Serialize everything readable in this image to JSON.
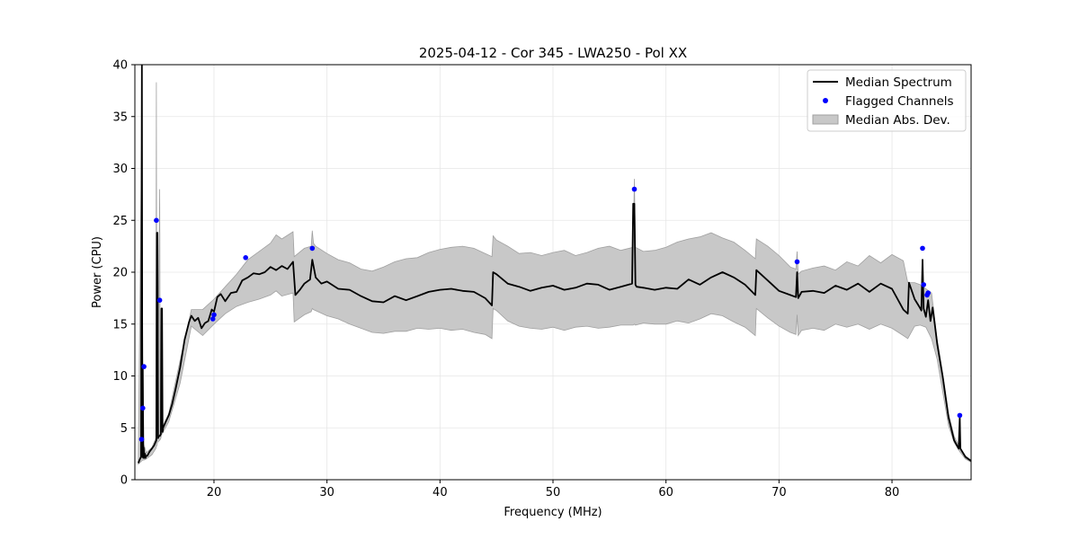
{
  "chart_data": {
    "type": "line",
    "title": "2025-04-12 - Cor 345 - LWA250 - Pol XX",
    "xlabel": "Frequency (MHz)",
    "ylabel": "Power (CPU)",
    "xlim": [
      13.0,
      87.0
    ],
    "ylim": [
      0,
      40
    ],
    "xticks": [
      20,
      30,
      40,
      50,
      60,
      70,
      80
    ],
    "yticks": [
      0,
      5,
      10,
      15,
      20,
      25,
      30,
      35,
      40
    ],
    "grid": true,
    "legend_position": "top-right",
    "colors": {
      "median": "#000000",
      "flagged": "#0000ff",
      "mad_fill": "#c8c8c8",
      "mad_edge": "#a0a0a0",
      "grid": "#e6e6e6"
    },
    "series": [
      {
        "name": "Median Spectrum",
        "kind": "line",
        "x": [
          13.3,
          13.45,
          13.55,
          13.62,
          13.66,
          13.7,
          13.74,
          13.78,
          13.84,
          13.9,
          13.95,
          14.0,
          14.05,
          14.1,
          14.3,
          14.5,
          14.7,
          14.9,
          14.95,
          15.0,
          15.05,
          15.1,
          15.2,
          15.3,
          15.35,
          15.4,
          15.45,
          15.5,
          15.7,
          16.0,
          16.3,
          16.6,
          17.0,
          17.4,
          17.8,
          18.0,
          18.3,
          18.6,
          18.9,
          19.2,
          19.5,
          19.8,
          20.0,
          20.3,
          20.6,
          21.0,
          21.5,
          22.0,
          22.5,
          23.0,
          23.5,
          24.0,
          24.5,
          25.0,
          25.5,
          26.0,
          26.5,
          27.0,
          27.2,
          27.6,
          28.0,
          28.5,
          28.7,
          29.0,
          29.5,
          30.0,
          31.0,
          32.0,
          33.0,
          34.0,
          35.0,
          36.0,
          37.0,
          38.0,
          39.0,
          40.0,
          41.0,
          42.0,
          43.0,
          44.0,
          44.6,
          44.7,
          45.0,
          46.0,
          47.0,
          48.0,
          49.0,
          50.0,
          51.0,
          52.0,
          53.0,
          54.0,
          55.0,
          56.0,
          57.0,
          57.1,
          57.2,
          57.3,
          57.4,
          58.0,
          59.0,
          60.0,
          61.0,
          62.0,
          63.0,
          64.0,
          65.0,
          66.0,
          67.0,
          67.9,
          68.0,
          69.0,
          70.0,
          71.0,
          71.5,
          71.6,
          71.7,
          72.0,
          73.0,
          74.0,
          75.0,
          76.0,
          77.0,
          78.0,
          79.0,
          80.0,
          81.0,
          81.4,
          81.5,
          82.0,
          82.4,
          82.6,
          82.7,
          82.8,
          83.0,
          83.2,
          83.4,
          83.6,
          84.0,
          84.5,
          85.0,
          85.5,
          85.9,
          86.0,
          86.05,
          86.5,
          87.0
        ],
        "y": [
          1.6,
          2.0,
          2.2,
          40.0,
          2.2,
          10.8,
          2.1,
          3.1,
          2.1,
          2.5,
          2.1,
          2.3,
          2.3,
          2.3,
          2.7,
          3.0,
          3.3,
          3.8,
          23.8,
          23.8,
          4.0,
          4.2,
          4.2,
          4.4,
          16.5,
          16.5,
          4.6,
          5.0,
          5.5,
          6.2,
          7.3,
          8.7,
          10.8,
          13.5,
          15.2,
          15.8,
          15.3,
          15.6,
          14.6,
          15.1,
          15.3,
          16.4,
          16.2,
          17.6,
          17.9,
          17.2,
          18.0,
          18.1,
          19.2,
          19.5,
          19.9,
          19.8,
          20.0,
          20.5,
          20.2,
          20.6,
          20.3,
          21.0,
          17.8,
          18.3,
          18.9,
          19.3,
          21.2,
          19.5,
          18.9,
          19.1,
          18.4,
          18.3,
          17.7,
          17.2,
          17.1,
          17.7,
          17.3,
          17.7,
          18.1,
          18.3,
          18.4,
          18.2,
          18.1,
          17.5,
          16.8,
          20.0,
          19.8,
          18.9,
          18.6,
          18.2,
          18.5,
          18.7,
          18.3,
          18.5,
          18.9,
          18.8,
          18.3,
          18.6,
          18.9,
          26.6,
          26.6,
          18.8,
          18.6,
          18.5,
          18.3,
          18.5,
          18.4,
          19.3,
          18.8,
          19.5,
          20.0,
          19.5,
          18.8,
          17.8,
          20.2,
          19.2,
          18.2,
          17.8,
          17.6,
          20.0,
          17.5,
          18.1,
          18.2,
          18.0,
          18.7,
          18.3,
          18.9,
          18.1,
          18.9,
          18.4,
          16.4,
          16.0,
          19.0,
          17.4,
          16.7,
          16.3,
          21.2,
          16.5,
          15.7,
          17.3,
          15.3,
          16.6,
          13.1,
          9.8,
          6.0,
          3.8,
          3.0,
          6.0,
          3.0,
          2.2,
          1.8
        ]
      },
      {
        "name": "Flagged Channels",
        "kind": "scatter",
        "x": [
          13.6,
          13.7,
          13.8,
          14.9,
          15.2,
          19.9,
          20.0,
          22.8,
          28.7,
          57.2,
          71.6,
          82.7,
          82.8,
          83.1,
          83.2,
          86.0
        ],
        "y": [
          3.9,
          6.9,
          10.9,
          25.0,
          17.3,
          15.5,
          15.9,
          21.4,
          22.3,
          28.0,
          21.0,
          22.3,
          18.8,
          17.8,
          18.0,
          6.2
        ]
      },
      {
        "name": "Median Abs. Dev.",
        "kind": "band",
        "x": [
          13.3,
          13.6,
          13.7,
          13.8,
          14.0,
          14.5,
          14.85,
          14.9,
          14.95,
          15.0,
          15.2,
          15.25,
          15.3,
          15.35,
          15.5,
          16.0,
          17.0,
          18.0,
          19.0,
          20.0,
          21.0,
          22.0,
          23.0,
          24.0,
          25.0,
          25.5,
          26.0,
          27.0,
          27.1,
          28.0,
          28.6,
          28.7,
          28.8,
          29.0,
          30.0,
          31.0,
          32.0,
          33.0,
          34.0,
          35.0,
          36.0,
          37.0,
          38.0,
          39.0,
          40.0,
          41.0,
          42.0,
          43.0,
          44.0,
          44.6,
          44.7,
          45.0,
          46.0,
          47.0,
          48.0,
          49.0,
          50.0,
          51.0,
          52.0,
          53.0,
          54.0,
          55.0,
          56.0,
          57.1,
          57.2,
          57.3,
          58.0,
          59.0,
          60.0,
          61.0,
          62.0,
          63.0,
          64.0,
          65.0,
          66.0,
          67.0,
          67.9,
          68.0,
          69.0,
          70.0,
          71.0,
          71.5,
          71.6,
          71.7,
          72.0,
          73.0,
          74.0,
          75.0,
          76.0,
          77.0,
          78.0,
          79.0,
          80.0,
          81.0,
          81.4,
          82.0,
          82.5,
          83.0,
          83.5,
          84.0,
          84.5,
          85.0,
          85.5,
          86.0,
          86.5,
          87.0
        ],
        "upper": [
          1.7,
          33.0,
          12.0,
          3.4,
          2.6,
          3.1,
          4.0,
          38.3,
          4.2,
          4.2,
          28.0,
          4.5,
          4.6,
          5.0,
          5.2,
          6.4,
          11.5,
          16.4,
          16.4,
          17.4,
          18.6,
          19.8,
          21.2,
          22.0,
          22.8,
          23.6,
          23.2,
          23.9,
          21.5,
          22.3,
          22.5,
          24.0,
          22.8,
          22.5,
          21.8,
          21.2,
          20.9,
          20.3,
          20.1,
          20.5,
          21.0,
          21.3,
          21.4,
          21.9,
          22.2,
          22.4,
          22.5,
          22.3,
          21.8,
          21.5,
          23.5,
          23.1,
          22.5,
          21.8,
          21.9,
          21.6,
          21.9,
          22.1,
          21.6,
          21.9,
          22.3,
          22.5,
          22.1,
          22.4,
          29.0,
          22.4,
          22.0,
          22.1,
          22.4,
          22.9,
          23.2,
          23.4,
          23.8,
          23.3,
          22.9,
          22.1,
          21.3,
          23.2,
          22.5,
          21.6,
          20.5,
          20.3,
          22.0,
          19.8,
          20.1,
          20.4,
          20.6,
          20.2,
          21.0,
          20.6,
          21.6,
          20.9,
          21.7,
          21.1,
          19.0,
          19.0,
          18.8,
          18.4,
          18.0,
          13.5,
          10.2,
          6.4,
          4.2,
          3.1,
          2.3,
          1.9
        ],
        "lower": [
          1.5,
          1.8,
          1.9,
          1.9,
          2.0,
          2.4,
          3.0,
          3.2,
          3.3,
          3.6,
          3.8,
          3.9,
          4.0,
          4.3,
          4.6,
          5.6,
          9.3,
          14.8,
          13.9,
          15.0,
          16.0,
          16.7,
          17.1,
          17.4,
          17.8,
          18.2,
          17.7,
          18.0,
          15.2,
          15.9,
          16.2,
          16.5,
          16.4,
          16.3,
          15.8,
          15.5,
          15.0,
          14.6,
          14.2,
          14.1,
          14.3,
          14.3,
          14.6,
          14.5,
          14.6,
          14.4,
          14.5,
          14.2,
          14.0,
          13.6,
          16.5,
          16.3,
          15.3,
          14.8,
          14.6,
          14.5,
          14.7,
          14.4,
          14.7,
          14.8,
          14.6,
          14.7,
          14.9,
          14.9,
          15.0,
          14.9,
          15.1,
          15.0,
          15.0,
          15.3,
          15.1,
          15.5,
          16.0,
          15.8,
          15.2,
          14.7,
          13.9,
          16.5,
          15.6,
          14.8,
          14.2,
          14.0,
          15.9,
          13.9,
          14.4,
          14.6,
          14.4,
          15.0,
          14.7,
          15.0,
          14.5,
          15.0,
          14.6,
          13.9,
          13.6,
          14.8,
          14.9,
          14.7,
          13.6,
          11.6,
          8.4,
          5.2,
          3.6,
          2.7,
          2.0,
          1.7
        ]
      }
    ]
  }
}
